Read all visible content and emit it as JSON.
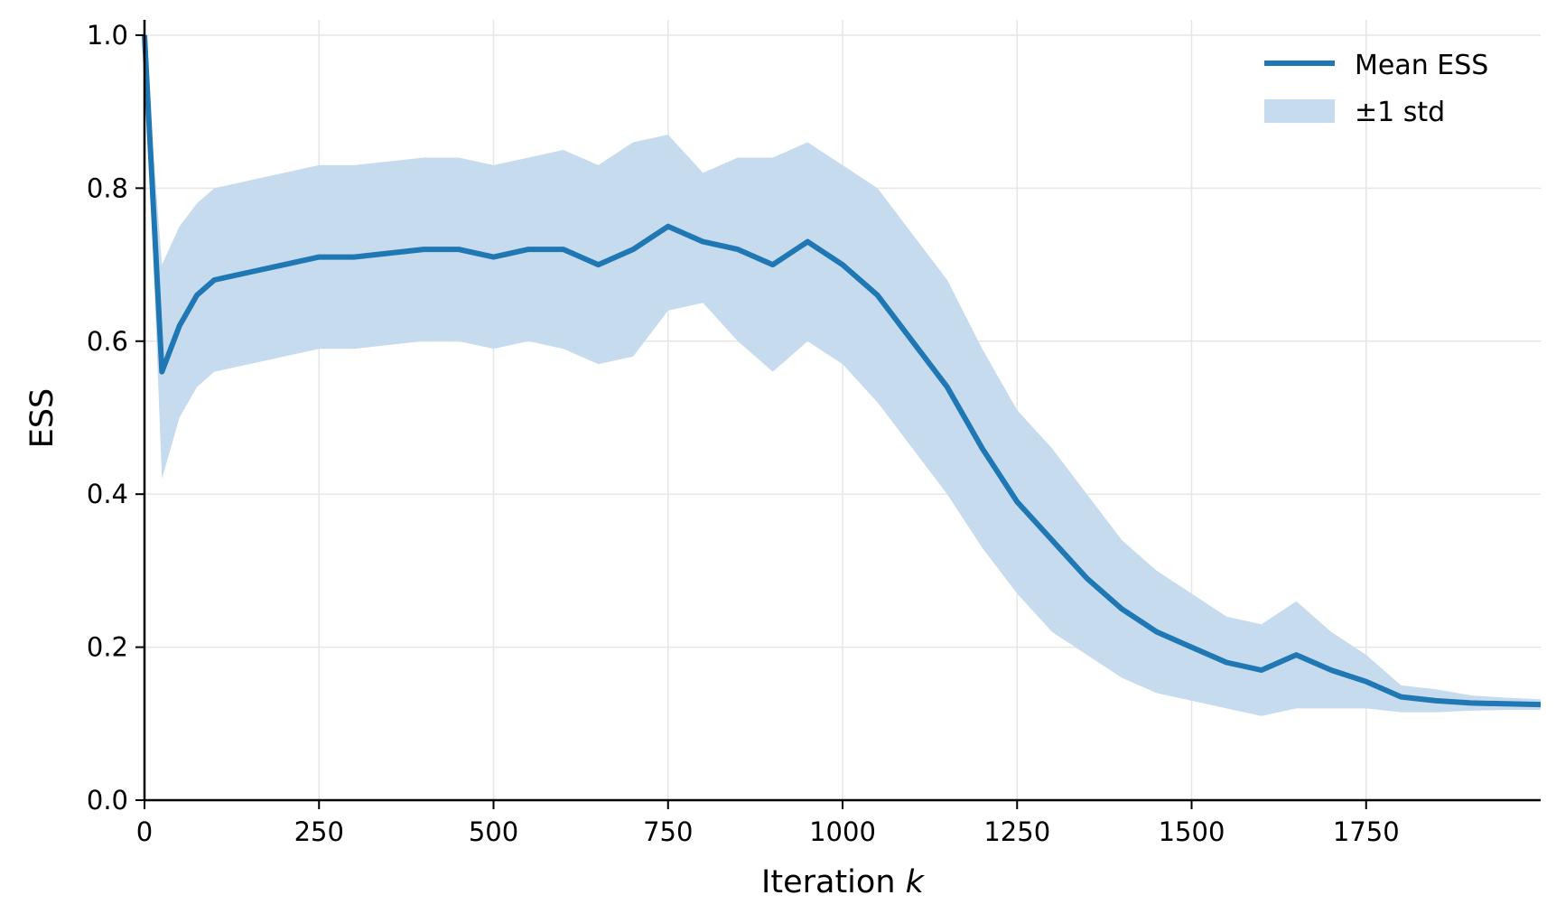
{
  "chart_data": {
    "type": "line",
    "title": "",
    "xlabel": "Iteration",
    "xlabel_var": "k",
    "ylabel": "ESS",
    "xlim": [
      0,
      2000
    ],
    "ylim": [
      0,
      1.02
    ],
    "grid": true,
    "legend_position": "top-right",
    "x_ticks": [
      0,
      250,
      500,
      750,
      1000,
      1250,
      1500,
      1750
    ],
    "x_tick_labels": [
      "0",
      "250",
      "500",
      "750",
      "1000",
      "1250",
      "1500",
      "1750"
    ],
    "y_ticks": [
      0.0,
      0.2,
      0.4,
      0.6,
      0.8,
      1.0
    ],
    "y_tick_labels": [
      "0.0",
      "0.2",
      "0.4",
      "0.6",
      "0.8",
      "1.0"
    ],
    "colors": {
      "mean": "#1f77b4",
      "band": "#c6dbed"
    },
    "series": [
      {
        "name": "Mean ESS",
        "kind": "line",
        "x": [
          0,
          25,
          50,
          75,
          100,
          150,
          200,
          250,
          300,
          350,
          400,
          450,
          500,
          550,
          600,
          650,
          700,
          750,
          800,
          850,
          900,
          950,
          1000,
          1050,
          1100,
          1150,
          1200,
          1250,
          1300,
          1350,
          1400,
          1450,
          1500,
          1550,
          1600,
          1650,
          1700,
          1750,
          1800,
          1850,
          1900,
          1950,
          2000
        ],
        "y": [
          1.0,
          0.56,
          0.62,
          0.66,
          0.68,
          0.69,
          0.7,
          0.71,
          0.71,
          0.715,
          0.72,
          0.72,
          0.71,
          0.72,
          0.72,
          0.7,
          0.72,
          0.75,
          0.73,
          0.72,
          0.7,
          0.73,
          0.7,
          0.66,
          0.6,
          0.54,
          0.46,
          0.39,
          0.34,
          0.29,
          0.25,
          0.22,
          0.2,
          0.18,
          0.17,
          0.19,
          0.17,
          0.155,
          0.135,
          0.13,
          0.127,
          0.126,
          0.125
        ]
      },
      {
        "name": "±1 std",
        "kind": "band",
        "x": [
          0,
          25,
          50,
          75,
          100,
          150,
          200,
          250,
          300,
          350,
          400,
          450,
          500,
          550,
          600,
          650,
          700,
          750,
          800,
          850,
          900,
          950,
          1000,
          1050,
          1100,
          1150,
          1200,
          1250,
          1300,
          1350,
          1400,
          1450,
          1500,
          1550,
          1600,
          1650,
          1700,
          1750,
          1800,
          1850,
          1900,
          1950,
          2000
        ],
        "lower": [
          1.0,
          0.42,
          0.5,
          0.54,
          0.56,
          0.57,
          0.58,
          0.59,
          0.59,
          0.595,
          0.6,
          0.6,
          0.59,
          0.6,
          0.59,
          0.57,
          0.58,
          0.64,
          0.65,
          0.6,
          0.56,
          0.6,
          0.57,
          0.52,
          0.46,
          0.4,
          0.33,
          0.27,
          0.22,
          0.19,
          0.16,
          0.14,
          0.13,
          0.12,
          0.11,
          0.12,
          0.12,
          0.12,
          0.115,
          0.115,
          0.117,
          0.118,
          0.118
        ],
        "upper": [
          1.0,
          0.7,
          0.75,
          0.78,
          0.8,
          0.81,
          0.82,
          0.83,
          0.83,
          0.835,
          0.84,
          0.84,
          0.83,
          0.84,
          0.85,
          0.83,
          0.86,
          0.87,
          0.82,
          0.84,
          0.84,
          0.86,
          0.83,
          0.8,
          0.74,
          0.68,
          0.59,
          0.51,
          0.46,
          0.4,
          0.34,
          0.3,
          0.27,
          0.24,
          0.23,
          0.26,
          0.22,
          0.19,
          0.15,
          0.145,
          0.137,
          0.134,
          0.132
        ]
      }
    ]
  }
}
